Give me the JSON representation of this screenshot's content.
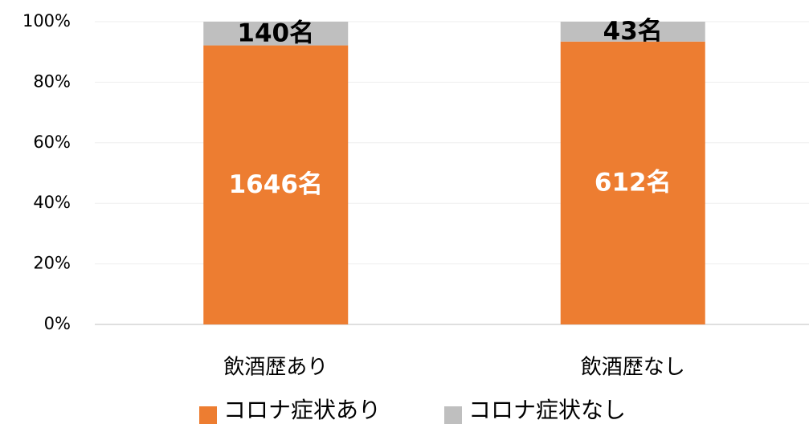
{
  "chart_data": {
    "type": "bar",
    "stacking": "percent",
    "categories": [
      "飲酒歴あり",
      "飲酒歴なし"
    ],
    "series": [
      {
        "name": "コロナ症状あり",
        "color": "#ED7D31",
        "label_color": "#FFFFFF",
        "values": [
          1646,
          612
        ],
        "value_labels": [
          "1646名",
          "612名"
        ]
      },
      {
        "name": "コロナ症状なし",
        "color": "#BFBFBF",
        "label_color": "#000000",
        "values": [
          140,
          43
        ],
        "value_labels": [
          "140名",
          "43名"
        ]
      }
    ],
    "ylim": [
      0,
      100
    ],
    "yticks": [
      {
        "value": 0,
        "label": "0%"
      },
      {
        "value": 20,
        "label": "20%"
      },
      {
        "value": 40,
        "label": "40%"
      },
      {
        "value": 60,
        "label": "60%"
      },
      {
        "value": 80,
        "label": "80%"
      },
      {
        "value": 100,
        "label": "100%"
      }
    ],
    "grid": true,
    "legend": "bottom"
  }
}
